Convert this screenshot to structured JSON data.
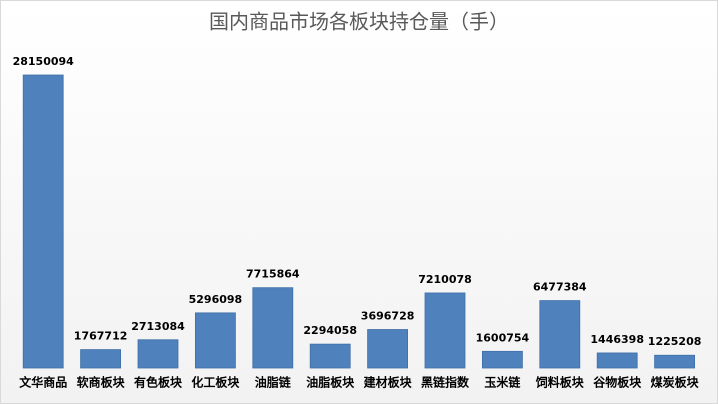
{
  "chart_data": {
    "type": "bar",
    "title": "国内商品市场各板块持仓量（手）",
    "categories": [
      "文华商品",
      "软商板块",
      "有色板块",
      "化工板块",
      "油脂链",
      "油脂板块",
      "建材板块",
      "黑链指数",
      "玉米链",
      "饲料板块",
      "谷物板块",
      "煤炭板块"
    ],
    "values": [
      28150094,
      1767712,
      2713084,
      5296098,
      7715864,
      2294058,
      3696728,
      7210078,
      1600754,
      6477384,
      1446398,
      1225208
    ],
    "color": "#4f81bd"
  }
}
